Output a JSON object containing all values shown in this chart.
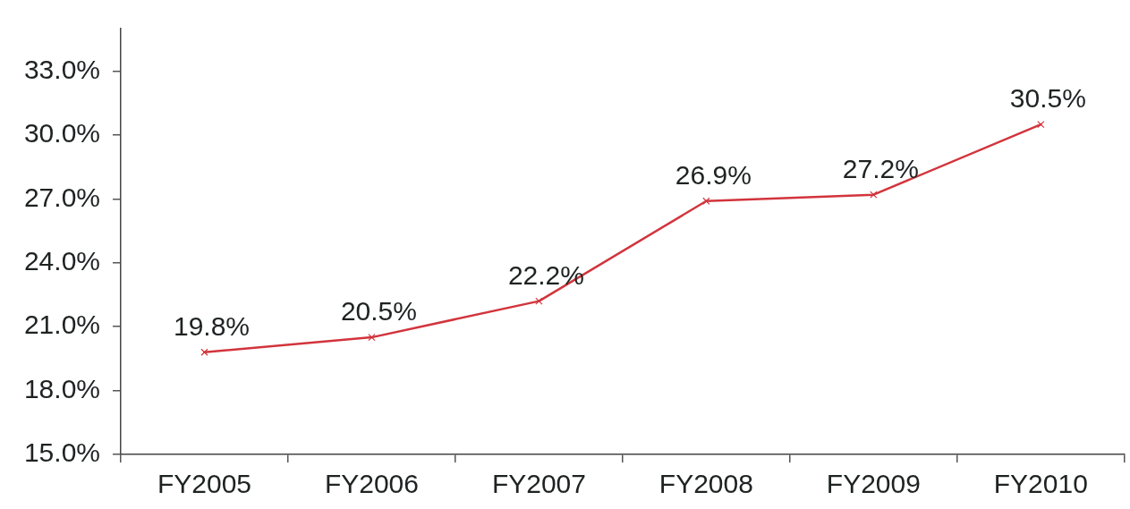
{
  "chart_data": {
    "type": "line",
    "categories": [
      "FY2005",
      "FY2006",
      "FY2007",
      "FY2008",
      "FY2009",
      "FY2010"
    ],
    "series": [
      {
        "color": "#d2343c",
        "values": [
          19.8,
          20.5,
          22.2,
          26.9,
          27.2,
          30.5
        ],
        "value_labels": [
          "19.8%",
          "20.5%",
          "22.2%",
          "26.9%",
          "27.2%",
          "30.5%"
        ]
      }
    ],
    "ylim": [
      15,
      35
    ],
    "yticks": [
      {
        "value": 15,
        "label": "15.0%"
      },
      {
        "value": 18,
        "label": "18.0%"
      },
      {
        "value": 21,
        "label": "21.0%"
      },
      {
        "value": 24,
        "label": "24.0%"
      },
      {
        "value": 27,
        "label": "27.0%"
      },
      {
        "value": 30,
        "label": "30.0%"
      },
      {
        "value": 33,
        "label": "33.0%"
      }
    ],
    "marker": "cross",
    "line_style": "solid"
  }
}
